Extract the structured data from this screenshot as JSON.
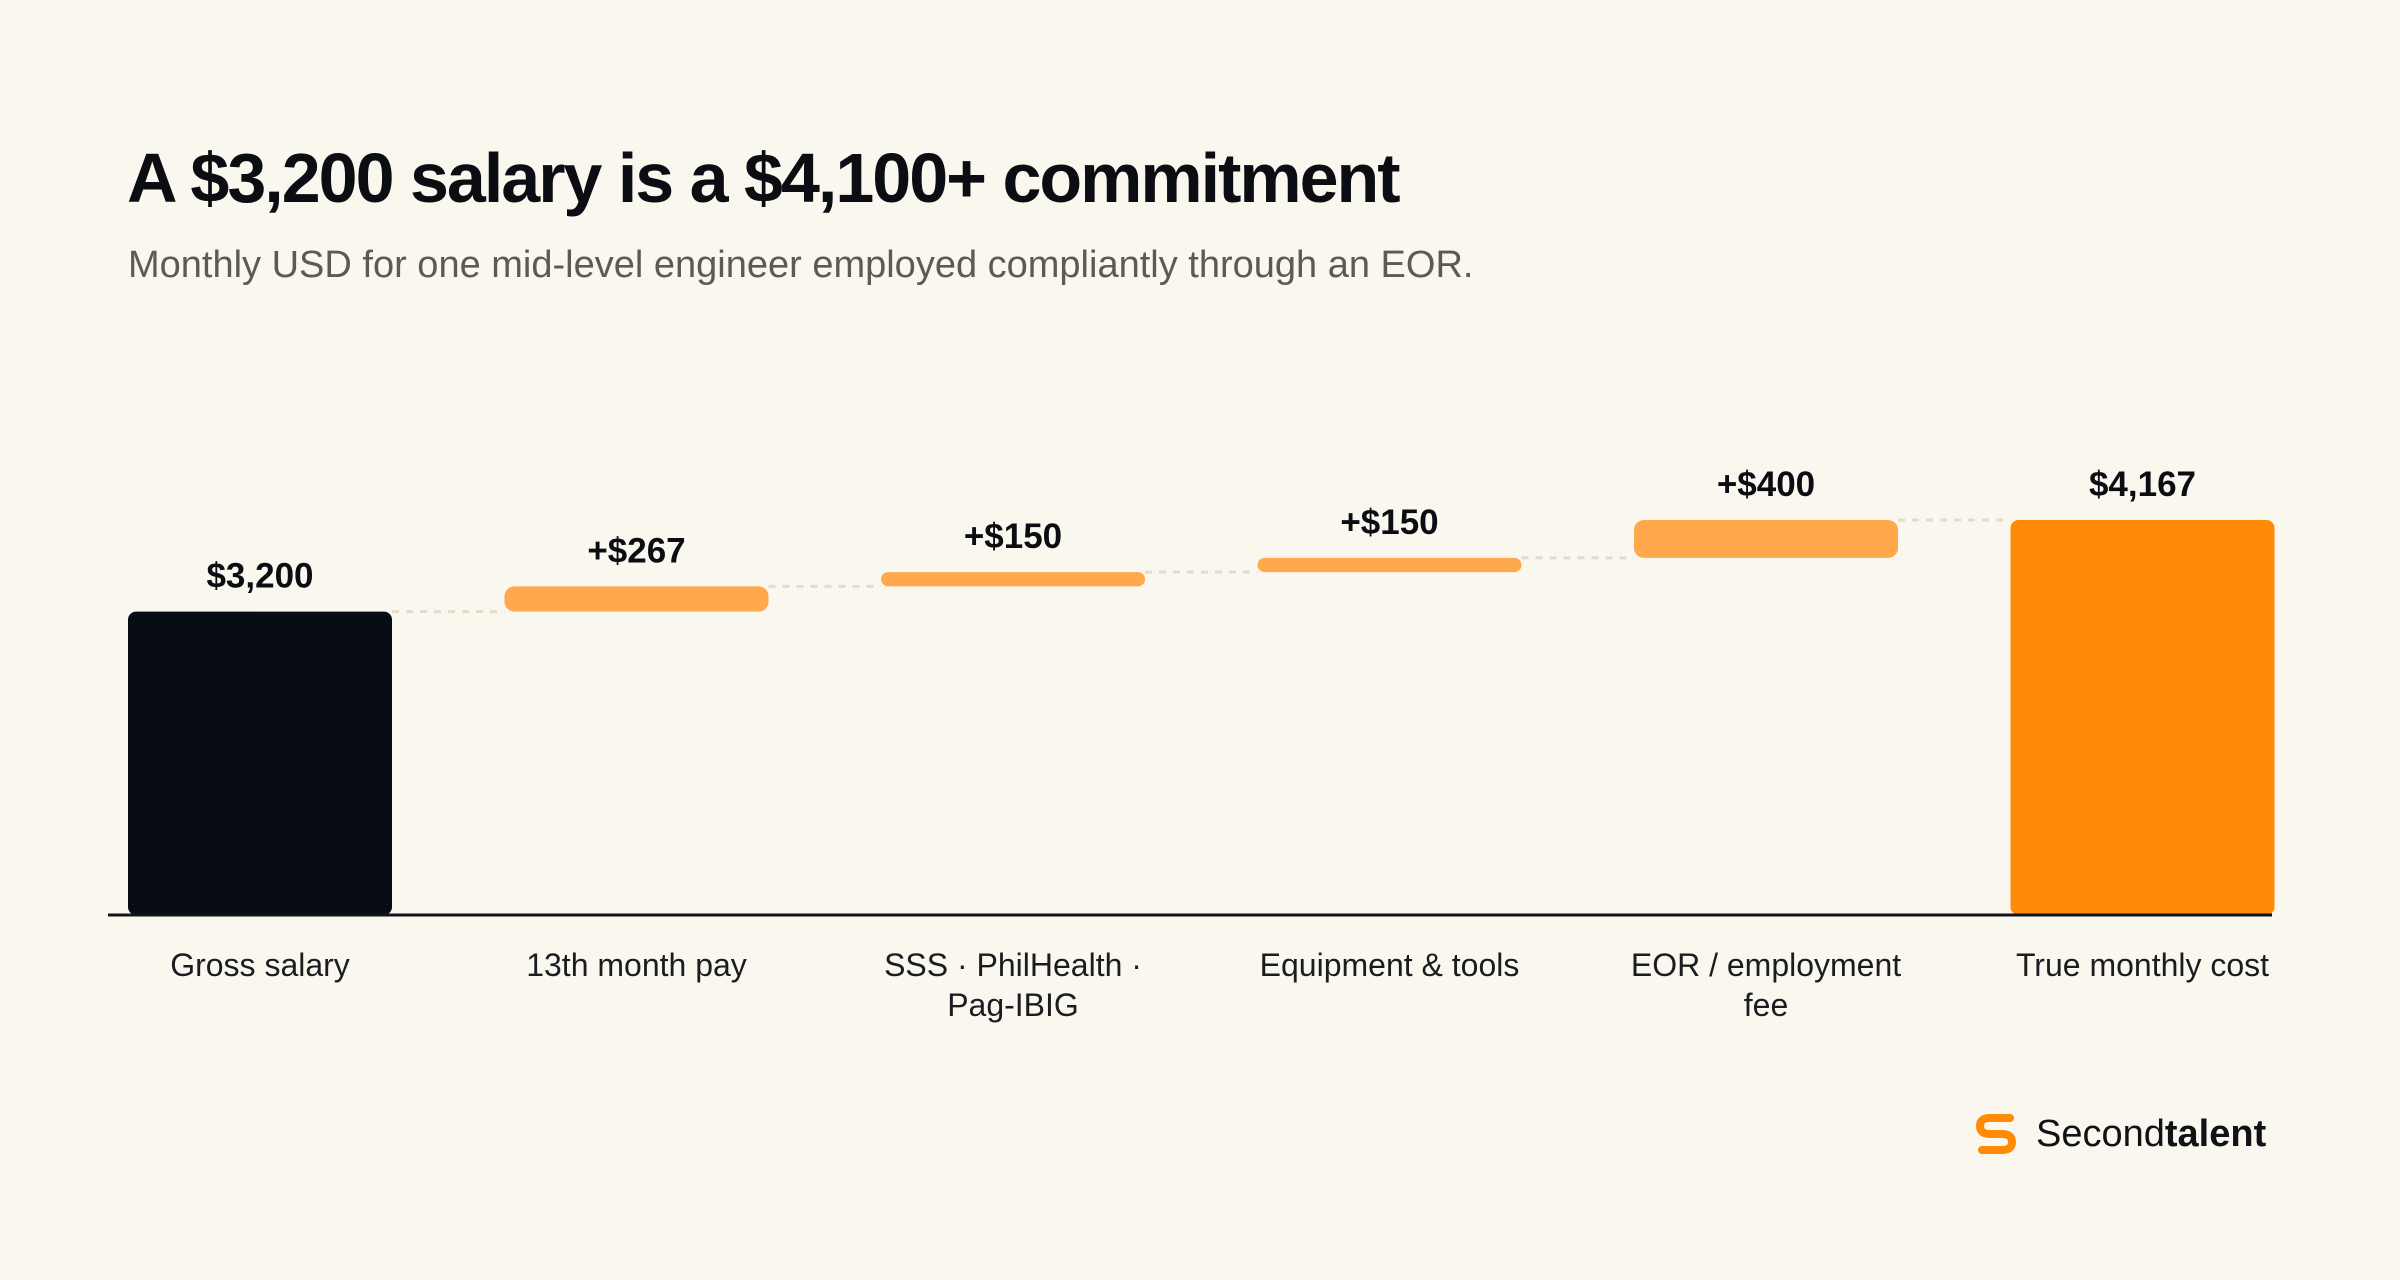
{
  "header": {
    "title": "A $3,200 salary is a $4,100+ commitment",
    "subtitle": "Monthly USD for one mid-level engineer employed compliantly through an EOR."
  },
  "brand": {
    "name_regular": "Second",
    "name_bold": "talent",
    "icon": "secondtalent-logo-icon"
  },
  "colors": {
    "background": "#faf7ef",
    "base_bar": "#080c14",
    "increment_bar": "#ffa84c",
    "total_bar": "#ff8a05",
    "text": "#0b0d12",
    "connector": "#e3dccb"
  },
  "chart_data": {
    "type": "bar",
    "subtype": "waterfall",
    "categories": [
      [
        "Gross salary"
      ],
      [
        "13th month pay"
      ],
      [
        "SSS · PhilHealth ·",
        "Pag-IBIG"
      ],
      [
        "Equipment & tools"
      ],
      [
        "EOR / employment",
        "fee"
      ],
      [
        "True monthly cost"
      ]
    ],
    "values": [
      3200,
      267,
      150,
      150,
      400,
      4167
    ],
    "kinds": [
      "base",
      "increment",
      "increment",
      "increment",
      "increment",
      "total"
    ],
    "data_labels": [
      "$3,200",
      "+$267",
      "+$150",
      "+$150",
      "+$400",
      "$4,167"
    ],
    "ylim": [
      0,
      4167
    ],
    "grid": false,
    "connectors": true
  }
}
